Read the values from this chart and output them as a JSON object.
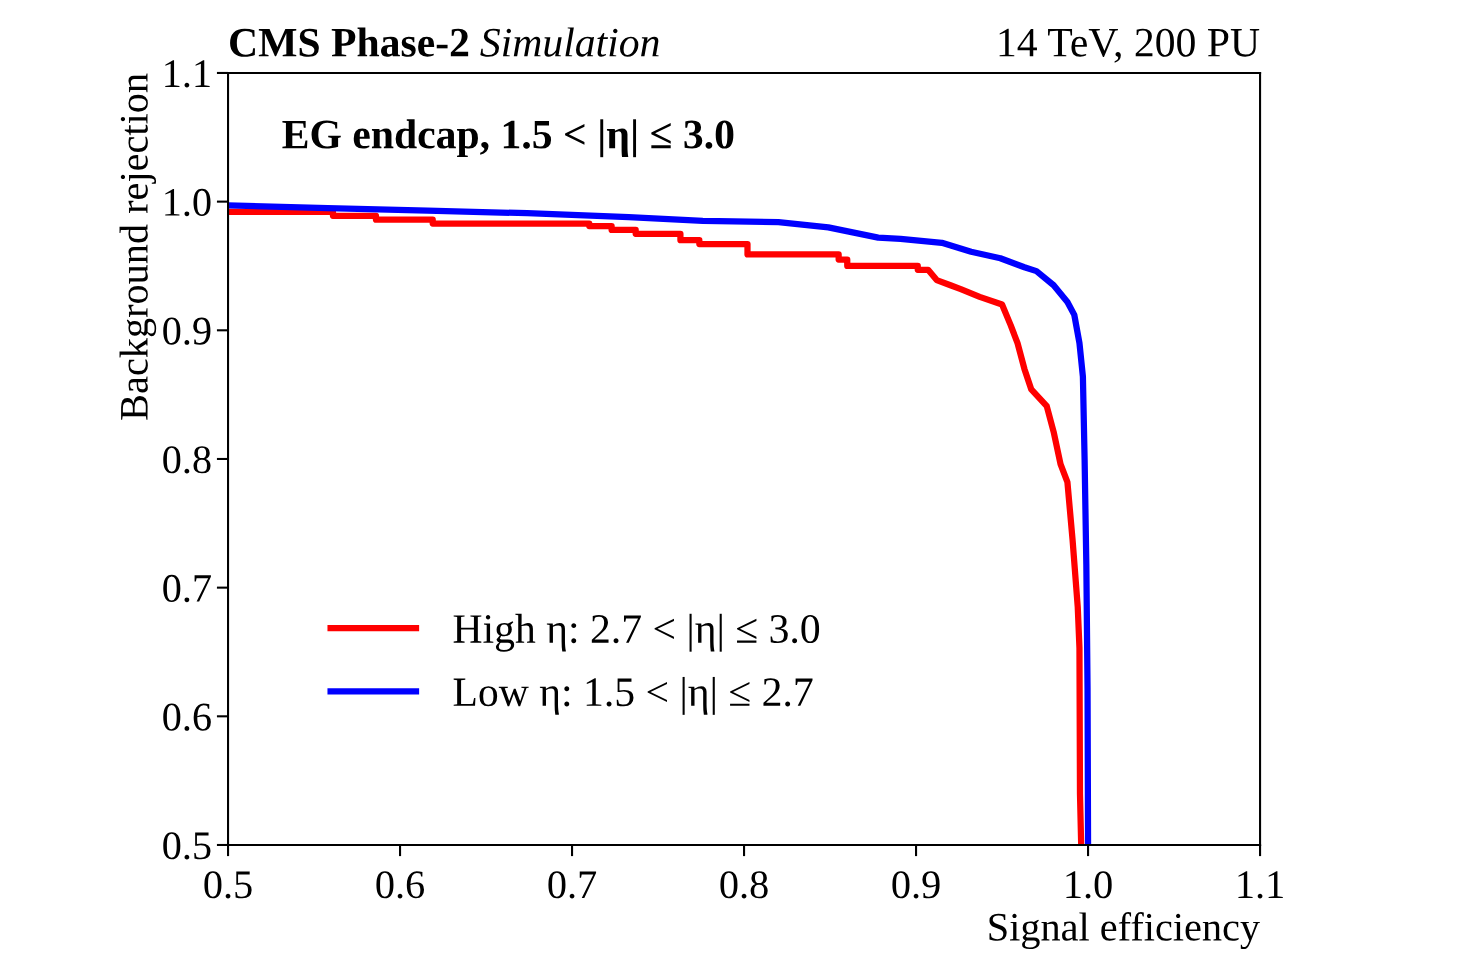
{
  "chart_data": {
    "type": "line",
    "title": "CMS Phase-2",
    "subtitle": "Simulation",
    "xlabel": "Signal efficiency",
    "ylabel": "Background rejection",
    "annotations": [
      "14 TeV, 200 PU",
      "EG endcap, 1.5 < |η| ≤ 3.0"
    ],
    "series": [
      {
        "name": "High η: 2.7 < |η| ≤ 3.0",
        "color": "#ff0000",
        "x": [
          0.5,
          0.561,
          0.561,
          0.586,
          0.586,
          0.619,
          0.619,
          0.71,
          0.71,
          0.723,
          0.723,
          0.737,
          0.737,
          0.763,
          0.763,
          0.774,
          0.774,
          0.802,
          0.802,
          0.855,
          0.855,
          0.86,
          0.86,
          0.901,
          0.901,
          0.907,
          0.912,
          0.92,
          0.926,
          0.937,
          0.95,
          0.955,
          0.959,
          0.963,
          0.967,
          0.976,
          0.98,
          0.984,
          0.988,
          0.991,
          0.994,
          0.995,
          0.9953,
          0.996
        ],
        "values": [
          0.992,
          0.992,
          0.989,
          0.989,
          0.986,
          0.986,
          0.983,
          0.983,
          0.981,
          0.981,
          0.978,
          0.978,
          0.975,
          0.975,
          0.97,
          0.97,
          0.967,
          0.967,
          0.959,
          0.959,
          0.955,
          0.955,
          0.95,
          0.95,
          0.947,
          0.947,
          0.939,
          0.935,
          0.932,
          0.926,
          0.92,
          0.904,
          0.89,
          0.87,
          0.854,
          0.841,
          0.821,
          0.796,
          0.782,
          0.737,
          0.685,
          0.653,
          0.54,
          0.5
        ]
      },
      {
        "name": "Low η: 1.5 < |η| ≤ 2.7",
        "color": "#0000ff",
        "x": [
          0.5,
          0.558,
          0.616,
          0.674,
          0.733,
          0.776,
          0.82,
          0.849,
          0.878,
          0.891,
          0.915,
          0.932,
          0.949,
          0.963,
          0.97,
          0.98,
          0.988,
          0.992,
          0.995,
          0.997,
          0.998,
          0.999,
          0.9997,
          1.0
        ],
        "values": [
          0.997,
          0.995,
          0.993,
          0.991,
          0.988,
          0.985,
          0.984,
          0.98,
          0.972,
          0.971,
          0.968,
          0.961,
          0.956,
          0.949,
          0.946,
          0.935,
          0.922,
          0.912,
          0.89,
          0.864,
          0.799,
          0.718,
          0.621,
          0.5
        ]
      }
    ],
    "xlim": [
      0.5,
      1.1
    ],
    "ylim": [
      0.5,
      1.1
    ],
    "xticks": [
      0.5,
      0.6,
      0.7,
      0.8,
      0.9,
      {
        "value": 1,
        "label": "1.0"
      },
      1.1
    ],
    "yticks": [
      0.5,
      0.6,
      0.7,
      0.8,
      0.9,
      {
        "value": 1,
        "label": "1.0"
      },
      1.1
    ],
    "grid": false,
    "legend": "bottom left",
    "marker": "none",
    "line_style": "solid"
  }
}
